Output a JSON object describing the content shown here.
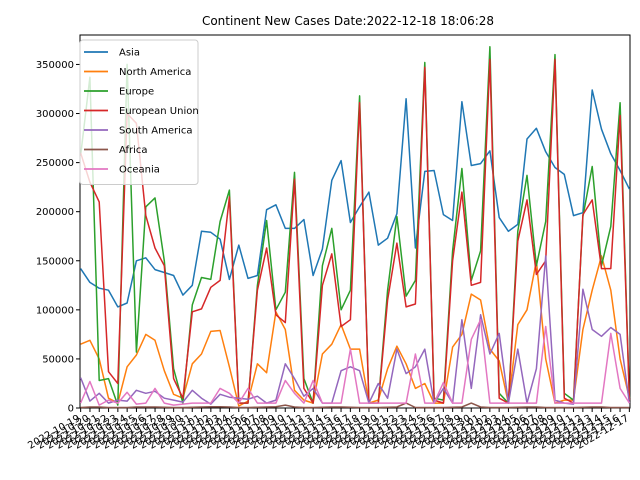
{
  "chart_data": {
    "type": "line",
    "title": "Continent New Cases Date:2022-12-18 18:06:28",
    "xlabel": "",
    "ylabel": "",
    "ylim": [
      0,
      380000
    ],
    "yticks": [
      0,
      50000,
      100000,
      150000,
      200000,
      250000,
      300000,
      350000
    ],
    "ytick_labels": [
      "0",
      "50000",
      "100000",
      "150000",
      "200000",
      "250000",
      "300000",
      "350000"
    ],
    "legend_position": "upper-left",
    "grid": false,
    "x": [
      "2022-10-19",
      "2022-10-20",
      "2022-10-21",
      "2022-10-22",
      "2022-10-23",
      "2022-10-24",
      "2022-10-25",
      "2022-10-26",
      "2022-10-27",
      "2022-10-28",
      "2022-10-29",
      "2022-10-30",
      "2022-10-31",
      "2022-11-01",
      "2022-11-02",
      "2022-11-03",
      "2022-11-04",
      "2022-11-05",
      "2022-11-06",
      "2022-11-07",
      "2022-11-08",
      "2022-11-09",
      "2022-11-10",
      "2022-11-11",
      "2022-11-12",
      "2022-11-13",
      "2022-11-14",
      "2022-11-15",
      "2022-11-16",
      "2022-11-17",
      "2022-11-18",
      "2022-11-19",
      "2022-11-20",
      "2022-11-21",
      "2022-11-22",
      "2022-11-23",
      "2022-11-24",
      "2022-11-25",
      "2022-11-26",
      "2022-11-27",
      "2022-11-28",
      "2022-11-29",
      "2022-11-30",
      "2022-12-01",
      "2022-12-02",
      "2022-12-03",
      "2022-12-04",
      "2022-12-05",
      "2022-12-06",
      "2022-12-07",
      "2022-12-08",
      "2022-12-09",
      "2022-12-10",
      "2022-12-11",
      "2022-12-12",
      "2022-12-13",
      "2022-12-14",
      "2022-12-15",
      "2022-12-16",
      "2022-12-17"
    ],
    "series": [
      {
        "name": "Asia",
        "color": "#1f77b4",
        "values": [
          142000,
          128000,
          122000,
          120000,
          103000,
          107000,
          150000,
          153000,
          141000,
          138000,
          135000,
          115000,
          125000,
          180000,
          179000,
          172000,
          131000,
          166000,
          132000,
          135000,
          202000,
          207000,
          183000,
          183000,
          192000,
          135000,
          162000,
          232000,
          252000,
          189000,
          205000,
          220000,
          166000,
          173000,
          198000,
          315000,
          163000,
          241000,
          242000,
          197000,
          191000,
          312000,
          247000,
          249000,
          262000,
          194000,
          180000,
          187000,
          274000,
          285000,
          261000,
          245000,
          238000,
          196000,
          199000,
          324000,
          284000,
          259000,
          242000,
          223000
        ]
      },
      {
        "name": "North America",
        "color": "#ff7f0e",
        "values": [
          65000,
          69000,
          50000,
          10000,
          5000,
          42000,
          54000,
          75000,
          69000,
          38000,
          14000,
          10000,
          45000,
          55000,
          78000,
          79000,
          42000,
          2000,
          7000,
          45000,
          36000,
          98000,
          80000,
          18000,
          8000,
          5000,
          55000,
          65000,
          85000,
          60000,
          60000,
          5000,
          8000,
          40000,
          63000,
          45000,
          20000,
          25000,
          5000,
          5000,
          62000,
          75000,
          116000,
          110000,
          60000,
          48000,
          5000,
          85000,
          100000,
          150000,
          50000,
          5000,
          8000,
          8000,
          80000,
          120000,
          155000,
          120000,
          50000,
          10000
        ]
      },
      {
        "name": "Europe",
        "color": "#2ca02c",
        "values": [
          257000,
          337000,
          28000,
          30000,
          3000,
          350000,
          57000,
          205000,
          214000,
          150000,
          40000,
          5000,
          105000,
          133000,
          131000,
          190000,
          222000,
          5000,
          5000,
          125000,
          191000,
          100000,
          118000,
          240000,
          30000,
          5000,
          145000,
          183000,
          100000,
          120000,
          318000,
          5000,
          5000,
          120000,
          195000,
          114000,
          130000,
          352000,
          10000,
          8000,
          160000,
          244000,
          130000,
          160000,
          368000,
          15000,
          5000,
          180000,
          237000,
          145000,
          190000,
          360000,
          15000,
          8000,
          195000,
          246000,
          145000,
          185000,
          311000,
          10000
        ]
      },
      {
        "name": "European Union",
        "color": "#d62728",
        "values": [
          260000,
          230000,
          210000,
          37000,
          25000,
          300000,
          290000,
          196000,
          163000,
          145000,
          30000,
          10000,
          98000,
          101000,
          123000,
          130000,
          215000,
          5000,
          5000,
          120000,
          163000,
          95000,
          87000,
          233000,
          20000,
          5000,
          125000,
          157000,
          83000,
          90000,
          311000,
          5000,
          5000,
          110000,
          168000,
          103000,
          106000,
          347000,
          8000,
          5000,
          150000,
          220000,
          125000,
          128000,
          355000,
          10000,
          5000,
          170000,
          212000,
          136000,
          150000,
          355000,
          10000,
          5000,
          197000,
          212000,
          142000,
          142000,
          298000,
          8000
        ]
      },
      {
        "name": "South America",
        "color": "#9467bd",
        "values": [
          31000,
          7000,
          15000,
          5000,
          8000,
          7000,
          18000,
          15000,
          17000,
          10000,
          8000,
          6000,
          18000,
          10000,
          4000,
          14000,
          11000,
          10000,
          9000,
          12000,
          5000,
          8000,
          45000,
          30000,
          12000,
          20000,
          5000,
          5000,
          38000,
          42000,
          38000,
          5000,
          25000,
          10000,
          60000,
          35000,
          42000,
          60000,
          5000,
          20000,
          5000,
          90000,
          20000,
          95000,
          55000,
          76000,
          5000,
          60000,
          5000,
          40000,
          155000,
          8000,
          5000,
          4000,
          121000,
          80000,
          73000,
          82000,
          75000,
          5000
        ]
      },
      {
        "name": "Africa",
        "color": "#8c564b",
        "values": [
          500,
          1000,
          1000,
          500,
          500,
          500,
          1000,
          1000,
          1000,
          800,
          500,
          500,
          800,
          1000,
          1200,
          1200,
          1000,
          500,
          500,
          800,
          1000,
          1200,
          3000,
          1000,
          500,
          500,
          800,
          1000,
          1000,
          800,
          500,
          500,
          500,
          800,
          1000,
          5000,
          500,
          500,
          500,
          500,
          800,
          1000,
          5000,
          1000,
          500,
          500,
          500,
          800,
          1000,
          1000,
          500,
          500,
          500,
          500,
          800,
          1000,
          1000,
          500,
          500,
          500
        ]
      },
      {
        "name": "Oceania",
        "color": "#e377c2",
        "values": [
          5000,
          27000,
          3000,
          8000,
          5000,
          16000,
          4000,
          5000,
          20000,
          5000,
          3000,
          4000,
          5000,
          5000,
          5000,
          20000,
          15000,
          5000,
          20000,
          5000,
          5000,
          5000,
          28000,
          15000,
          5000,
          28000,
          5000,
          5000,
          5000,
          60000,
          5000,
          5000,
          5000,
          5000,
          5000,
          5000,
          55000,
          5000,
          5000,
          26000,
          5000,
          5000,
          70000,
          90000,
          5000,
          5000,
          5000,
          5000,
          5000,
          5000,
          83000,
          5000,
          5000,
          5000,
          5000,
          5000,
          5000,
          76000,
          20000,
          5000
        ]
      }
    ]
  }
}
